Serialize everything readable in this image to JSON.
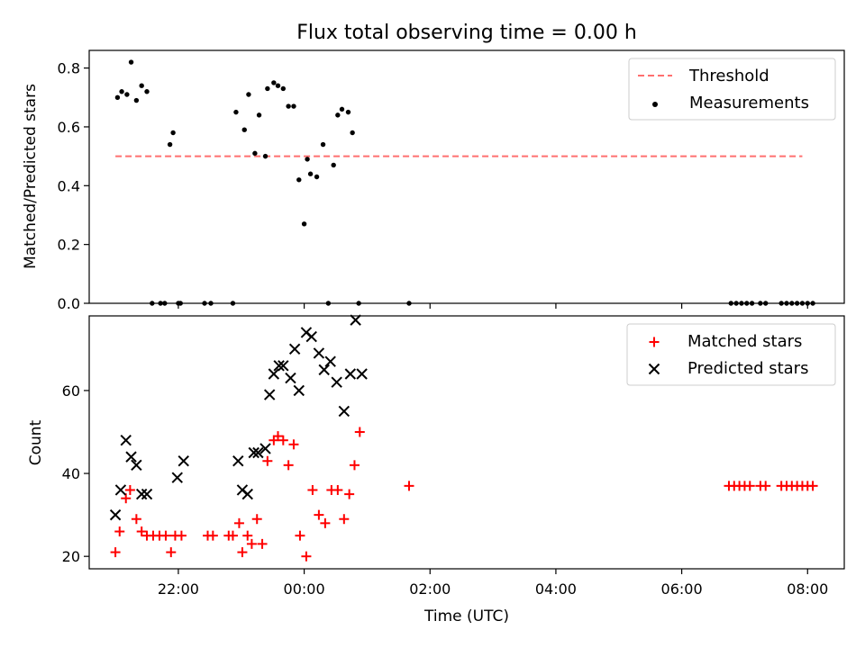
{
  "chart_data": [
    {
      "type": "scatter",
      "title": "Flux total observing time = 0.00 h",
      "ylabel": "Matched/Predicted stars",
      "xlim": [
        "20:35",
        "08:35"
      ],
      "ylim": [
        0,
        0.86
      ],
      "yticks": [
        "0.0",
        "0.2",
        "0.4",
        "0.6",
        "0.8"
      ],
      "legend_position": "upper right",
      "series": [
        {
          "name": "Threshold",
          "style": "dashed-line",
          "color": "#ff6f6f",
          "x": [
            "21:00",
            "07:55"
          ],
          "y": [
            0.5,
            0.5
          ]
        },
        {
          "name": "Measurements",
          "style": "dot",
          "color": "#000000",
          "x": [
            "21:02",
            "21:06",
            "21:11",
            "21:15",
            "21:20",
            "21:25",
            "21:30",
            "21:35",
            "21:43",
            "21:47",
            "21:52",
            "21:55",
            "22:00",
            "22:02",
            "22:25",
            "22:31",
            "22:52",
            "22:55",
            "23:03",
            "23:07",
            "23:13",
            "23:17",
            "23:23",
            "23:25",
            "23:31",
            "23:35",
            "23:40",
            "23:45",
            "23:50",
            "23:55",
            "00:00",
            "00:03",
            "00:06",
            "00:12",
            "00:18",
            "00:23",
            "00:28",
            "00:32",
            "00:36",
            "00:42",
            "00:46",
            "00:52",
            "01:40",
            "06:47",
            "06:52",
            "06:57",
            "07:02",
            "07:07",
            "07:15",
            "07:20",
            "07:35",
            "07:40",
            "07:45",
            "07:50",
            "07:55",
            "08:00",
            "08:05"
          ],
          "y": [
            0.7,
            0.72,
            0.71,
            0.82,
            0.69,
            0.74,
            0.72,
            0.0,
            0.0,
            0.0,
            0.54,
            0.58,
            0.0,
            0.0,
            0.0,
            0.0,
            0.0,
            0.65,
            0.59,
            0.71,
            0.51,
            0.64,
            0.5,
            0.73,
            0.75,
            0.74,
            0.73,
            0.67,
            0.67,
            0.42,
            0.27,
            0.49,
            0.44,
            0.43,
            0.54,
            0.0,
            0.47,
            0.64,
            0.66,
            0.65,
            0.58,
            0.0,
            0.0,
            0.0,
            0.0,
            0.0,
            0.0,
            0.0,
            0.0,
            0.0,
            0.0,
            0.0,
            0.0,
            0.0,
            0.0,
            0.0,
            0.0
          ]
        }
      ]
    },
    {
      "type": "scatter",
      "xlabel": "Time (UTC)",
      "ylabel": "Count",
      "xlim": [
        "20:35",
        "08:35"
      ],
      "ylim": [
        17,
        78
      ],
      "yticks": [
        "20",
        "40",
        "60"
      ],
      "xticks": [
        "22:00",
        "00:00",
        "02:00",
        "04:00",
        "06:00",
        "08:00"
      ],
      "legend_position": "upper right",
      "series": [
        {
          "name": "Matched stars",
          "marker": "plus",
          "color": "#ff0000",
          "x": [
            "21:00",
            "21:04",
            "21:10",
            "21:14",
            "21:20",
            "21:25",
            "21:30",
            "21:36",
            "21:42",
            "21:48",
            "21:53",
            "21:57",
            "22:03",
            "22:28",
            "22:33",
            "22:48",
            "22:52",
            "22:58",
            "23:01",
            "23:06",
            "23:10",
            "23:15",
            "23:20",
            "23:25",
            "23:31",
            "23:35",
            "23:40",
            "23:45",
            "23:50",
            "23:56",
            "00:02",
            "00:08",
            "00:14",
            "00:20",
            "00:26",
            "00:32",
            "00:38",
            "00:43",
            "00:48",
            "00:53",
            "01:40",
            "06:45",
            "06:50",
            "06:55",
            "07:00",
            "07:05",
            "07:15",
            "07:20",
            "07:35",
            "07:40",
            "07:45",
            "07:50",
            "07:55",
            "08:00",
            "08:05"
          ],
          "y": [
            21,
            26,
            34,
            36,
            29,
            26,
            25,
            25,
            25,
            25,
            21,
            25,
            25,
            25,
            25,
            25,
            25,
            28,
            21,
            25,
            23,
            29,
            23,
            43,
            48,
            49,
            48,
            42,
            47,
            25,
            20,
            36,
            30,
            28,
            36,
            36,
            29,
            35,
            42,
            50,
            37,
            37,
            37,
            37,
            37,
            37,
            37,
            37,
            37,
            37,
            37,
            37,
            37,
            37,
            37
          ]
        },
        {
          "name": "Predicted stars",
          "marker": "x",
          "color": "#000000",
          "x": [
            "21:00",
            "21:05",
            "21:10",
            "21:15",
            "21:20",
            "21:25",
            "21:30",
            "21:59",
            "22:05",
            "22:57",
            "23:01",
            "23:06",
            "23:12",
            "23:16",
            "23:23",
            "23:27",
            "23:31",
            "23:36",
            "23:40",
            "23:47",
            "23:51",
            "23:55",
            "00:02",
            "00:07",
            "00:14",
            "00:19",
            "00:25",
            "00:31",
            "00:38",
            "00:44",
            "00:49",
            "00:55"
          ],
          "y": [
            30,
            36,
            48,
            44,
            42,
            35,
            35,
            39,
            43,
            43,
            36,
            35,
            45,
            45,
            46,
            59,
            64,
            66,
            66,
            63,
            70,
            60,
            74,
            73,
            69,
            65,
            67,
            62,
            55,
            64,
            77,
            64
          ]
        }
      ]
    }
  ]
}
